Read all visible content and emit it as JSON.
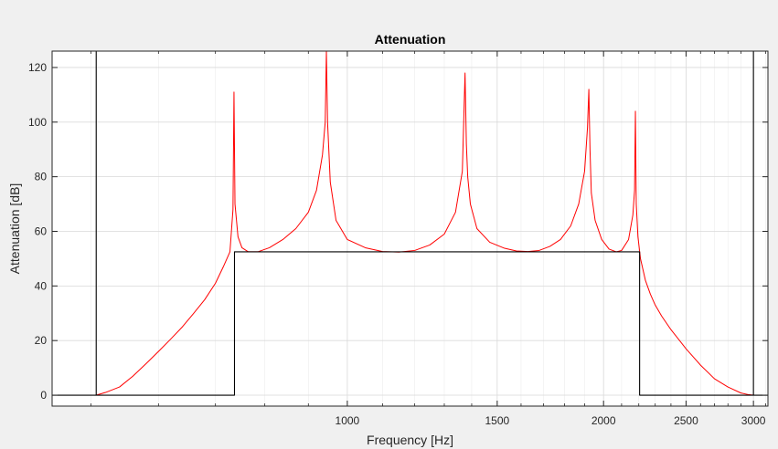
{
  "chart_data": {
    "type": "line",
    "title": "Attenuation",
    "xlabel": "Frequency [Hz]",
    "ylabel": "Attenuation [dB]",
    "xscale": "log",
    "xlim": [
      450,
      3120
    ],
    "ylim": [
      -4,
      126
    ],
    "grid": "on",
    "x_ticks": [
      1000,
      1500,
      2000,
      2500,
      3000
    ],
    "y_ticks": [
      0,
      20,
      40,
      60,
      80,
      100,
      120
    ],
    "colors": {
      "attenuation": "#ff0000",
      "mask": "#000000",
      "grid": "#d9d9d9",
      "axes_bg": "#ffffff",
      "figure_bg": "#f0f0f0"
    },
    "series": [
      {
        "key": "attenuation",
        "color": "#ff0000",
        "x": [
          450,
          507,
          520,
          540,
          560,
          580,
          600,
          620,
          640,
          660,
          680,
          700,
          715,
          728,
          734,
          736,
          738,
          744,
          752,
          765,
          785,
          810,
          840,
          870,
          900,
          920,
          935,
          942,
          945,
          948,
          955,
          970,
          1000,
          1050,
          1100,
          1150,
          1200,
          1250,
          1300,
          1340,
          1365,
          1375,
          1380,
          1385,
          1395,
          1420,
          1470,
          1530,
          1580,
          1630,
          1680,
          1730,
          1780,
          1830,
          1870,
          1900,
          1915,
          1922,
          1928,
          1935,
          1955,
          1990,
          2030,
          2070,
          2100,
          2140,
          2165,
          2175,
          2180,
          2185,
          2195,
          2210,
          2240,
          2270,
          2300,
          2340,
          2400,
          2500,
          2600,
          2700,
          2800,
          2900,
          2960,
          3000,
          3120
        ],
        "y": [
          0,
          0,
          1,
          3,
          7,
          11.5,
          16,
          20.5,
          25,
          30,
          35,
          41,
          47,
          52.5,
          68,
          111,
          70,
          58,
          54,
          52.5,
          52.5,
          54,
          57,
          61,
          67,
          75,
          88,
          100,
          126,
          100,
          78,
          64,
          57,
          54,
          52.6,
          52.4,
          53,
          55,
          59,
          67,
          82,
          118,
          92,
          80,
          70,
          61,
          56,
          53.8,
          52.8,
          52.6,
          53,
          54.5,
          57,
          62,
          70,
          82,
          98,
          112,
          90,
          74,
          64,
          57,
          53.5,
          52.5,
          53,
          57,
          66,
          75,
          104,
          70,
          58,
          50,
          42,
          37,
          33,
          29,
          24,
          17,
          11,
          6,
          3,
          0.8,
          0.2,
          0,
          0
        ]
      },
      {
        "key": "mask",
        "color": "#000000",
        "x": [
          450,
          507,
          507,
          507,
          507,
          737,
          737,
          737,
          2205,
          2205,
          2205,
          3000,
          3000,
          3000,
          3000,
          3120
        ],
        "y": [
          0,
          0,
          126,
          0,
          0,
          0,
          52.5,
          52.5,
          52.5,
          52.5,
          0,
          0,
          0,
          126,
          0,
          0
        ]
      }
    ]
  }
}
